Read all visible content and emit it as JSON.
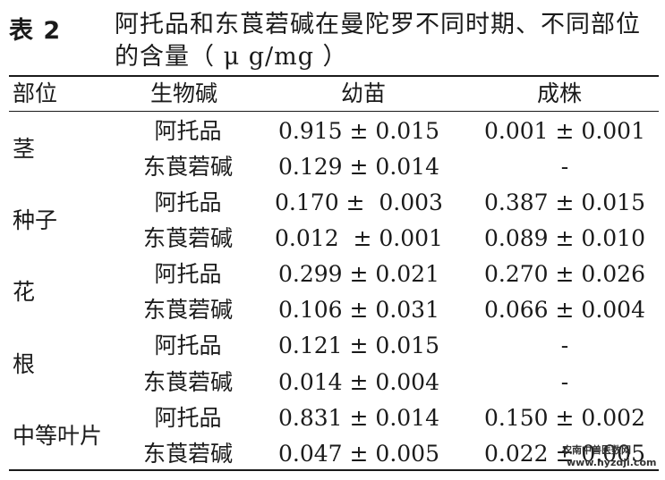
{
  "table": {
    "label": "表 2",
    "title_line1": "阿托品和东莨菪碱在曼陀罗不同时期、不同部位",
    "title_line2": "的含量（ μ g/mg ）",
    "headers": {
      "part": "部位",
      "alkaloid": "生物碱",
      "seedling": "幼苗",
      "adult": "成株"
    },
    "rows": [
      {
        "part": "茎",
        "items": [
          {
            "alkaloid": "阿托品",
            "seedling": "0.915 ± 0.015",
            "adult": "0.001 ± 0.001"
          },
          {
            "alkaloid": "东莨菪碱",
            "seedling": "0.129 ± 0.014",
            "adult": "-"
          }
        ]
      },
      {
        "part": "种子",
        "items": [
          {
            "alkaloid": "阿托品",
            "seedling": "0.170 ±  0.003",
            "adult": "0.387 ± 0.015"
          },
          {
            "alkaloid": "东莨菪碱",
            "seedling": "0.012  ± 0.001",
            "adult": "0.089 ± 0.010"
          }
        ]
      },
      {
        "part": "花",
        "items": [
          {
            "alkaloid": "阿托品",
            "seedling": "0.299 ± 0.021",
            "adult": "0.270 ± 0.026"
          },
          {
            "alkaloid": "东莨菪碱",
            "seedling": "0.106 ± 0.031",
            "adult": "0.066 ± 0.004"
          }
        ]
      },
      {
        "part": "根",
        "items": [
          {
            "alkaloid": "阿托品",
            "seedling": "0.121 ± 0.015",
            "adult": "-"
          },
          {
            "alkaloid": "东莨菪碱",
            "seedling": "0.014 ± 0.004",
            "adult": "-"
          }
        ]
      },
      {
        "part": "中等叶片",
        "items": [
          {
            "alkaloid": "阿托品",
            "seedling": "0.831 ± 0.014",
            "adult": "0.150 ± 0.002"
          },
          {
            "alkaloid": "东莨菪碱",
            "seedling": "0.047 ± 0.005",
            "adult": "0.022 ± 0.005"
          }
        ]
      }
    ]
  },
  "watermark": {
    "line1": "农南中兽医数网",
    "line2": "www.nyzdji.com"
  }
}
